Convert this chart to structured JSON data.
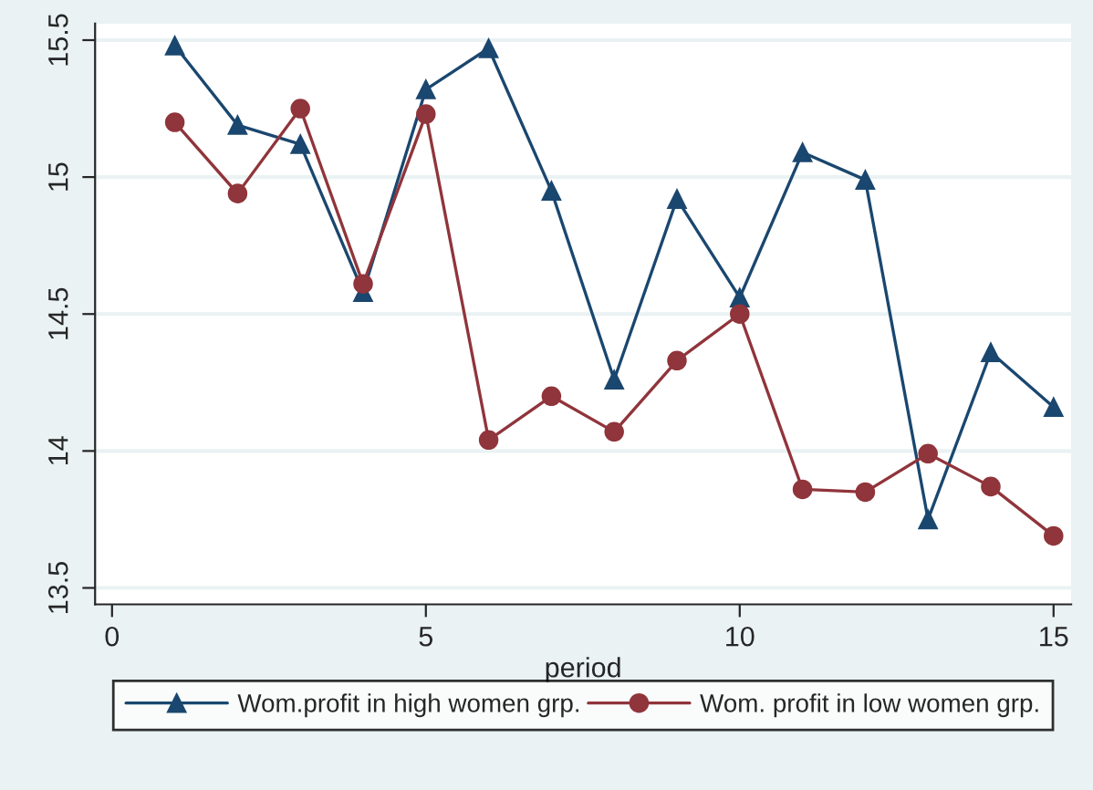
{
  "chart_data": {
    "type": "line",
    "xlabel": "period",
    "x": [
      1,
      2,
      3,
      4,
      5,
      6,
      7,
      8,
      9,
      10,
      11,
      12,
      13,
      14,
      15
    ],
    "series": [
      {
        "name": "Wom.profit in high women grp.",
        "color": "#1a476f",
        "marker": "triangle",
        "values": [
          15.48,
          15.19,
          15.12,
          14.58,
          15.32,
          15.47,
          14.95,
          14.26,
          14.92,
          14.56,
          15.09,
          14.99,
          13.75,
          14.36,
          14.16
        ]
      },
      {
        "name": "Wom. profit in low women grp.",
        "color": "#90353b",
        "marker": "circle",
        "values": [
          15.2,
          14.94,
          15.25,
          14.61,
          15.23,
          14.04,
          14.2,
          14.07,
          14.33,
          14.5,
          13.86,
          13.85,
          13.99,
          13.87,
          13.69
        ]
      }
    ],
    "xlim": [
      -0.27,
      15.28
    ],
    "ylim": [
      13.44,
      15.56
    ],
    "xticks": [
      0,
      5,
      10,
      15
    ],
    "yticks": [
      13.5,
      14,
      14.5,
      15,
      15.5
    ],
    "grid": "y",
    "legend": "bottom",
    "line_style": "solid"
  }
}
